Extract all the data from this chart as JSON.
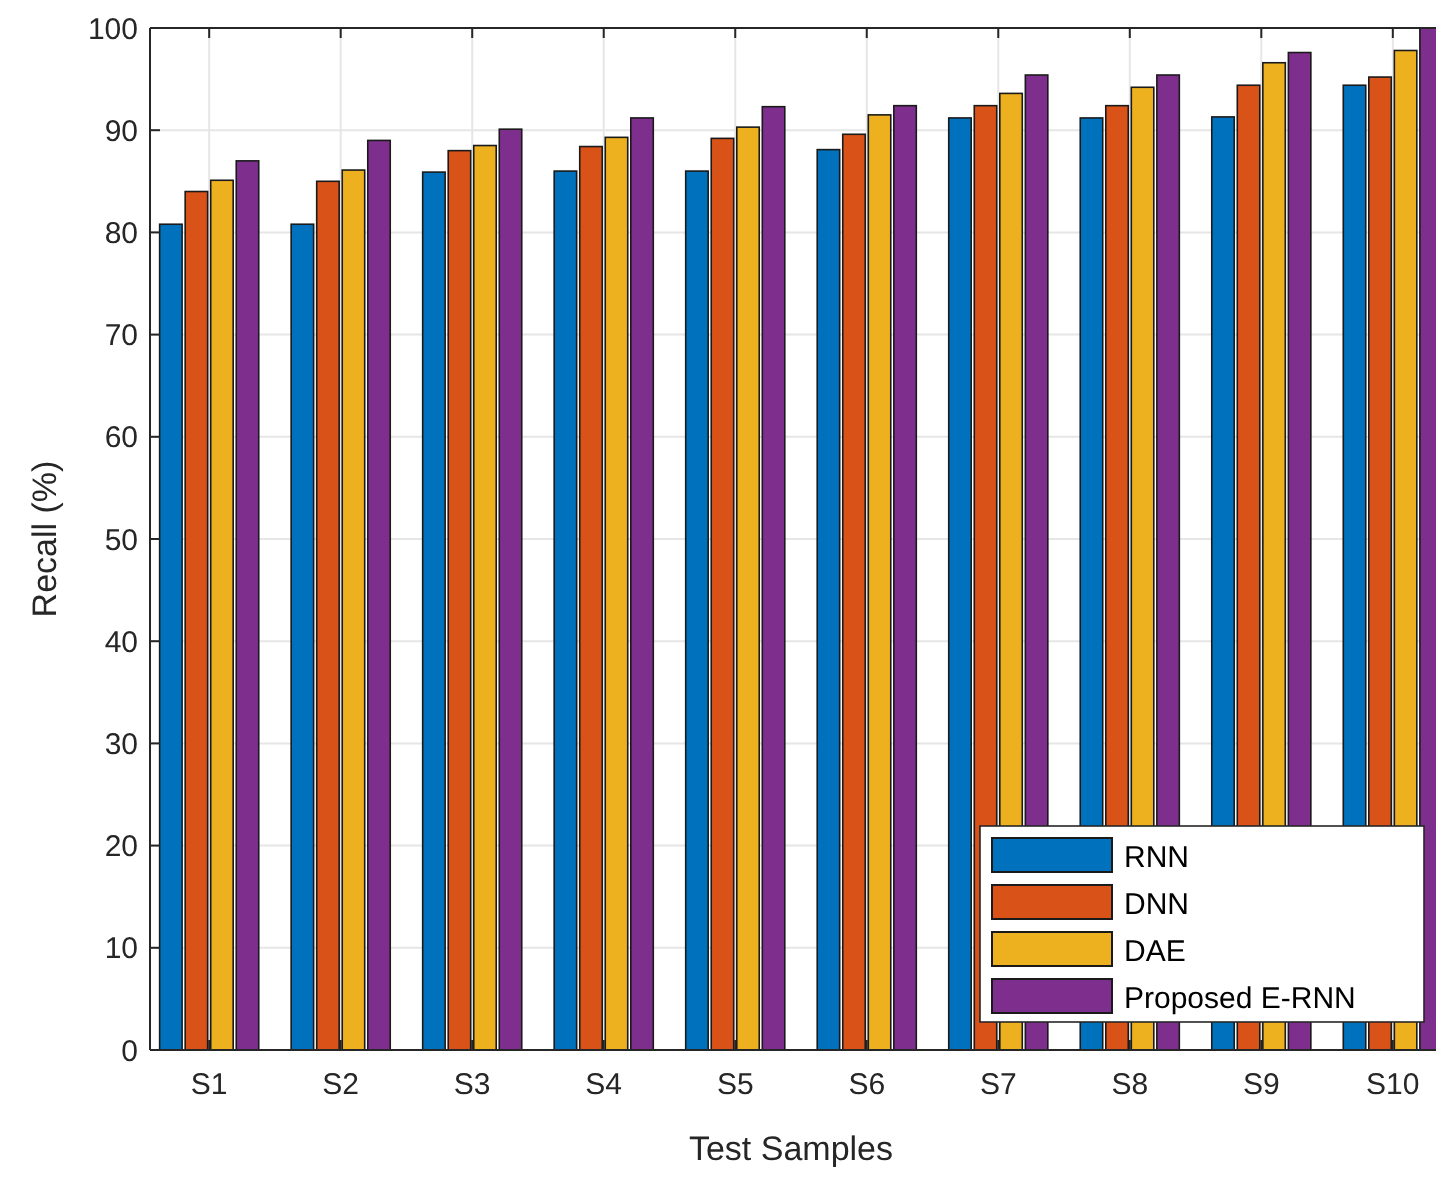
{
  "chart_data": {
    "type": "bar",
    "xlabel": "Test Samples",
    "ylabel": "Recall (%)",
    "categories": [
      "S1",
      "S2",
      "S3",
      "S4",
      "S5",
      "S6",
      "S7",
      "S8",
      "S9",
      "S10"
    ],
    "series": [
      {
        "name": "RNN",
        "color": "#0072bd",
        "values": [
          80.8,
          80.8,
          85.9,
          86,
          86,
          88.1,
          91.2,
          91.2,
          91.3,
          94.4
        ]
      },
      {
        "name": "DNN",
        "color": "#d95319",
        "values": [
          84,
          85,
          88,
          88.4,
          89.2,
          89.6,
          92.4,
          92.4,
          94.4,
          95.2
        ]
      },
      {
        "name": "DAE",
        "color": "#edb120",
        "values": [
          85.1,
          86.1,
          88.5,
          89.3,
          90.3,
          91.5,
          93.6,
          94.2,
          96.6,
          97.8
        ]
      },
      {
        "name": "Proposed E-RNN",
        "color": "#7e2f8e",
        "values": [
          87,
          89,
          90.1,
          91.2,
          92.3,
          92.4,
          95.4,
          95.4,
          97.6,
          100
        ]
      }
    ],
    "ylim": [
      0,
      100
    ],
    "yticks": [
      0,
      10,
      20,
      30,
      40,
      50,
      60,
      70,
      80,
      90,
      100
    ],
    "grid": true,
    "legend": "bottom right"
  }
}
